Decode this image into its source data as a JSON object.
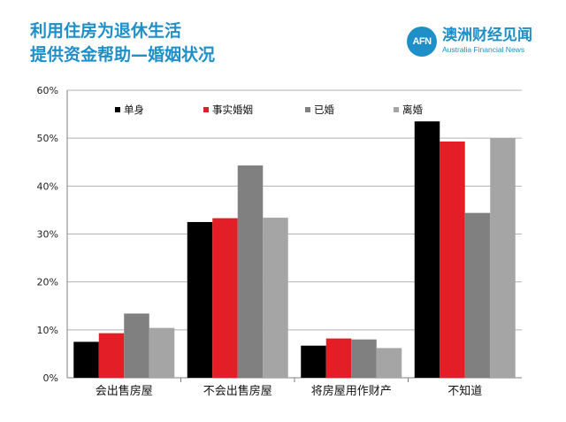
{
  "header": {
    "title_line1": "利用住房为退休生活",
    "title_line2": "提供资金帮助—婚姻状况"
  },
  "brand": {
    "logo_text": "AFN",
    "name_cn": "澳洲财经见闻",
    "name_en": "Australia Financial News"
  },
  "chart_data": {
    "type": "bar",
    "categories": [
      "会出售房屋",
      "不会出售房屋",
      "将房屋用作财产",
      "不知道"
    ],
    "series": [
      {
        "name": "单身",
        "color": "#000000",
        "values": [
          7.5,
          32.5,
          6.7,
          53.5
        ]
      },
      {
        "name": "事实婚姻",
        "color": "#e41e26",
        "values": [
          9.3,
          33.3,
          8.2,
          49.3
        ]
      },
      {
        "name": "已婚",
        "color": "#808080",
        "values": [
          13.4,
          44.3,
          8.0,
          34.4
        ]
      },
      {
        "name": "离婚",
        "color": "#a5a5a5",
        "values": [
          10.4,
          33.4,
          6.2,
          50.0
        ]
      }
    ],
    "ylim": [
      0,
      60
    ],
    "yticks": [
      "0%",
      "10%",
      "20%",
      "30%",
      "40%",
      "50%",
      "60%"
    ],
    "grid": true,
    "legend_position": "top"
  }
}
